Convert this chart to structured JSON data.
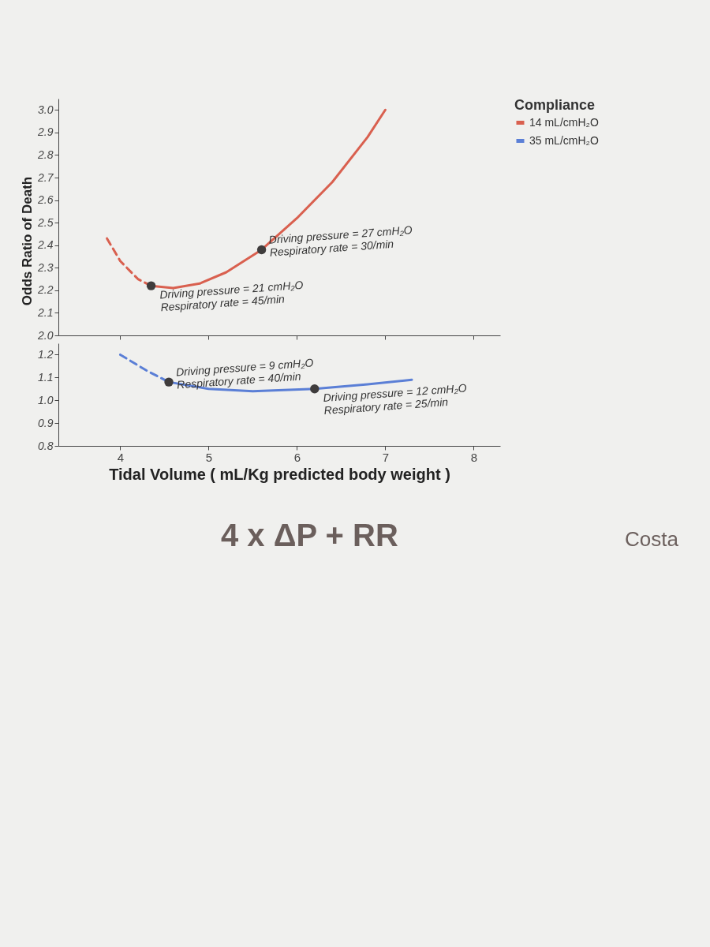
{
  "chart_data": [
    {
      "type": "line",
      "legend_title": "Compliance",
      "legend": "right",
      "tick_labels": "y",
      "grid": false,
      "xlim": [
        3.3,
        8.3
      ],
      "xticks": [
        4,
        5,
        6,
        7,
        8
      ],
      "ylim": [
        2.0,
        3.05
      ],
      "yticks": [
        {
          "value": 2,
          "label": "2.0"
        },
        2.1,
        2.2,
        2.3,
        2.4,
        2.5,
        2.6,
        2.7,
        2.8,
        2.9,
        {
          "value": 3,
          "label": "3.0"
        }
      ],
      "series": [
        {
          "name": "14 mL/cmH₂O",
          "color": "#d9604f",
          "x": [
            4.35,
            4.6,
            4.9,
            5.2,
            5.6,
            6.0,
            6.4,
            6.8,
            7.0
          ],
          "values": [
            2.22,
            2.21,
            2.23,
            2.28,
            2.38,
            2.52,
            2.68,
            2.88,
            3.0
          ]
        },
        {
          "color": "#d9604f",
          "line_style": "dashed",
          "x": [
            3.85,
            4.0,
            4.2,
            4.35
          ],
          "values": [
            2.43,
            2.33,
            2.25,
            2.22
          ]
        },
        {
          "type": "scatter",
          "marker": "circle",
          "color": "#3f3c3c",
          "x": [
            4.35,
            5.6
          ],
          "values": [
            2.22,
            2.38
          ]
        }
      ],
      "annotations": [
        {
          "text": "Driving pressure = 27 cmH₂O\nRespiratory rate  = 30/min",
          "x": 5.6,
          "y": 2.38
        },
        {
          "text": "Driving pressure = 21 cmH₂O\nRespiratory rate = 45/min",
          "x": 4.35,
          "y": 2.22
        }
      ]
    },
    {
      "type": "line",
      "xlabel": "Tidal Volume ( mL/Kg predicted body weight )",
      "ylabel": "Odds Ratio of Death",
      "grid": false,
      "xlim": [
        3.3,
        8.3
      ],
      "xticks": [
        4,
        5,
        6,
        7,
        8
      ],
      "ylim": [
        0.8,
        1.25
      ],
      "yticks": [
        0.8,
        0.9,
        {
          "value": 1,
          "label": "1.0"
        },
        1.1,
        1.2
      ],
      "series": [
        {
          "name": "35 mL/cmH₂O",
          "color": "#5b7fd6",
          "x": [
            4.55,
            5.0,
            5.5,
            6.2,
            6.8,
            7.3
          ],
          "values": [
            1.08,
            1.05,
            1.04,
            1.05,
            1.07,
            1.09
          ]
        },
        {
          "color": "#5b7fd6",
          "line_style": "dashed",
          "x": [
            4.0,
            4.3,
            4.55
          ],
          "values": [
            1.2,
            1.13,
            1.08
          ]
        },
        {
          "type": "scatter",
          "marker": "circle",
          "color": "#3f3c3c",
          "x": [
            4.55,
            6.2
          ],
          "values": [
            1.08,
            1.05
          ]
        }
      ],
      "annotations": [
        {
          "text": "Driving pressure = 9 cmH₂O\nRespiratory rate  = 40/min",
          "x": 4.55,
          "y": 1.08
        },
        {
          "text": "Driving pressure = 12 cmH₂O\nRespiratory rate  = 25/min",
          "x": 6.2,
          "y": 1.05
        },
        "4 x ΔP + RR",
        "Costa"
      ]
    }
  ]
}
